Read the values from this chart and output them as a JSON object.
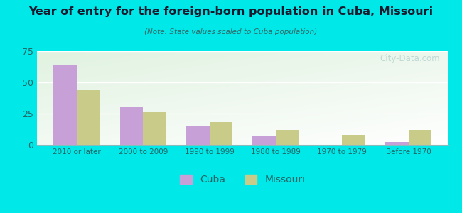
{
  "title": "Year of entry for the foreign-born population in Cuba, Missouri",
  "subtitle": "(Note: State values scaled to Cuba population)",
  "categories": [
    "2010 or later",
    "2000 to 2009",
    "1990 to 1999",
    "1980 to 1989",
    "1970 to 1979",
    "Before 1970"
  ],
  "cuba_values": [
    64,
    30,
    15,
    7,
    0,
    2
  ],
  "missouri_values": [
    44,
    26,
    18,
    12,
    8,
    12
  ],
  "cuba_color": "#c8a0d8",
  "missouri_color": "#c8cc88",
  "background_outer": "#00e8e8",
  "ylim": [
    0,
    75
  ],
  "yticks": [
    0,
    25,
    50,
    75
  ],
  "bar_width": 0.35,
  "watermark": "City-Data.com",
  "legend_labels": [
    "Cuba",
    "Missouri"
  ],
  "title_color": "#1a1a2e",
  "subtitle_color": "#336666"
}
